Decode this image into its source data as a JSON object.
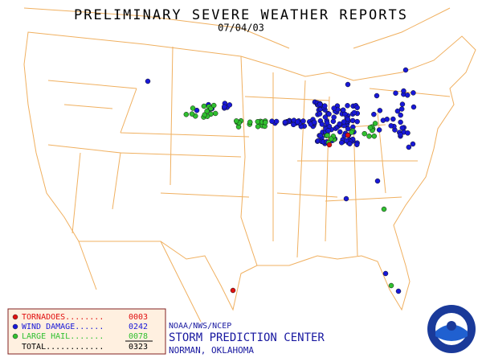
{
  "header": {
    "title": "PRELIMINARY SEVERE WEATHER REPORTS",
    "date": "07/04/03"
  },
  "legend": {
    "entries": [
      {
        "label": "TORNADOES........",
        "count": "0003",
        "color": "#e01010"
      },
      {
        "label": "WIND DAMAGE......",
        "count": "0242",
        "color": "#1818d8"
      },
      {
        "label": "LARGE HAIL.......",
        "count": "0078",
        "color": "#30c030"
      }
    ],
    "total_label": "TOTAL............",
    "total": "0323"
  },
  "footer": {
    "agency": "NOAA/NWS/NCEP",
    "center": "STORM PREDICTION CENTER",
    "location": "NORMAN, OKLAHOMA"
  }
}
